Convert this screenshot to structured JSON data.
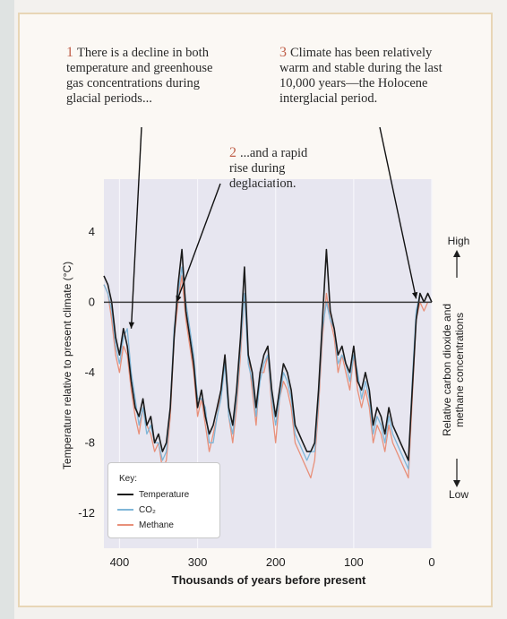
{
  "annotations": [
    {
      "num": "1",
      "text": "There is a decline in both\ntemperature and greenhouse\ngas concentrations during\nglacial periods..."
    },
    {
      "num": "2",
      "text": "...and a rapid\nrise during\ndeglaciation."
    },
    {
      "num": "3",
      "text": "Climate has been relatively\nwarm and stable during the last\n10,000 years—the Holocene\ninterglacial period."
    }
  ],
  "colors": {
    "temperature": "#1a1a1a",
    "co2": "#7fb6d8",
    "methane": "#e8907a",
    "plot_background": "#e7e6f0",
    "annotation_number": "#c0604a"
  },
  "key": {
    "title": "Key:",
    "items": [
      "Temperature",
      "CO₂",
      "Methane"
    ]
  },
  "chart_data": {
    "type": "line",
    "xlabel": "Thousands of years before present",
    "ylabel": "Temperature relative to present climate (°C)",
    "ylabel_right": "Relative carbon dioxide and\nmethane concentrations",
    "right_axis_high": "High",
    "right_axis_low": "Low",
    "xlim": [
      420,
      0
    ],
    "ylim": [
      -14,
      7
    ],
    "x_ticks": [
      400,
      300,
      200,
      100,
      0
    ],
    "y_ticks": [
      4,
      0,
      -4,
      -8,
      -12
    ],
    "reference_line": 0,
    "legend_position": "bottom-left",
    "series": [
      {
        "name": "Temperature",
        "x": [
          420,
          415,
          410,
          405,
          400,
          395,
          390,
          385,
          380,
          375,
          370,
          365,
          360,
          355,
          350,
          345,
          340,
          335,
          330,
          325,
          320,
          315,
          310,
          305,
          300,
          295,
          290,
          285,
          280,
          275,
          270,
          265,
          260,
          255,
          250,
          245,
          240,
          235,
          230,
          225,
          220,
          215,
          210,
          205,
          200,
          195,
          190,
          185,
          180,
          175,
          170,
          165,
          160,
          155,
          150,
          145,
          140,
          135,
          130,
          125,
          120,
          115,
          110,
          105,
          100,
          95,
          90,
          85,
          80,
          75,
          70,
          65,
          60,
          55,
          50,
          45,
          40,
          35,
          30,
          25,
          20,
          15,
          10,
          5,
          0
        ],
        "y": [
          1.5,
          1,
          0,
          -2,
          -3,
          -1.5,
          -2.5,
          -4.5,
          -6,
          -6.5,
          -5.5,
          -7,
          -6.5,
          -8,
          -7.5,
          -8.5,
          -8,
          -6,
          -2,
          1,
          3,
          -0.5,
          -2,
          -3.5,
          -6,
          -5,
          -6.5,
          -7.5,
          -7,
          -6,
          -5,
          -3,
          -6,
          -7,
          -5,
          -2,
          2,
          -3,
          -4,
          -6,
          -4,
          -3,
          -2.5,
          -5,
          -6.5,
          -5,
          -3.5,
          -4,
          -5,
          -7,
          -7.5,
          -8,
          -8.5,
          -8.5,
          -8,
          -5,
          -1,
          3,
          -0.5,
          -1.5,
          -3,
          -2.5,
          -3.5,
          -4,
          -2.5,
          -4.5,
          -5,
          -4,
          -5,
          -7,
          -6,
          -6.5,
          -7.5,
          -6,
          -7,
          -7.5,
          -8,
          -8.5,
          -9,
          -5,
          -1,
          0.5,
          0,
          0.5,
          0
        ]
      },
      {
        "name": "CO₂",
        "x": [
          420,
          415,
          410,
          405,
          400,
          395,
          390,
          385,
          380,
          375,
          370,
          365,
          360,
          355,
          350,
          345,
          340,
          335,
          330,
          325,
          320,
          315,
          310,
          305,
          300,
          295,
          290,
          285,
          280,
          275,
          270,
          265,
          260,
          255,
          250,
          245,
          240,
          235,
          230,
          225,
          220,
          215,
          210,
          205,
          200,
          195,
          190,
          185,
          180,
          175,
          170,
          165,
          160,
          155,
          150,
          145,
          140,
          135,
          130,
          125,
          120,
          115,
          110,
          105,
          100,
          95,
          90,
          85,
          80,
          75,
          70,
          65,
          60,
          55,
          50,
          45,
          40,
          35,
          30,
          25,
          20,
          15,
          10,
          5,
          0
        ],
        "y": [
          1,
          0.5,
          -0.5,
          -2.5,
          -3.5,
          -2,
          -1.5,
          -4,
          -5.5,
          -7,
          -6,
          -7.5,
          -7,
          -8,
          -8,
          -9,
          -8.5,
          -6,
          -1.5,
          0.5,
          2,
          0,
          -1.5,
          -3,
          -5.5,
          -5.5,
          -6,
          -8,
          -8,
          -6.5,
          -5.5,
          -3.5,
          -6.5,
          -7.5,
          -5.5,
          -2.5,
          0.5,
          -3.5,
          -4.5,
          -6.5,
          -4.5,
          -3.5,
          -3,
          -5.5,
          -7,
          -5.5,
          -4,
          -4.5,
          -5.5,
          -7.5,
          -8,
          -8.5,
          -9,
          -8.5,
          -8.5,
          -5.5,
          -1.5,
          0,
          -1,
          -1.5,
          -3.5,
          -3,
          -3.5,
          -4.5,
          -3,
          -4,
          -5.5,
          -4.5,
          -5.5,
          -7.5,
          -6.5,
          -7,
          -8,
          -6.5,
          -7.5,
          -8,
          -8.5,
          -9,
          -9.5,
          -4.5,
          -0.5,
          0.5,
          0,
          0,
          0
        ]
      },
      {
        "name": "Methane",
        "x": [
          420,
          415,
          410,
          405,
          400,
          395,
          390,
          385,
          380,
          375,
          370,
          365,
          360,
          355,
          350,
          345,
          340,
          335,
          330,
          325,
          320,
          315,
          310,
          305,
          300,
          295,
          290,
          285,
          280,
          275,
          270,
          265,
          260,
          255,
          250,
          245,
          240,
          235,
          230,
          225,
          220,
          215,
          210,
          205,
          200,
          195,
          190,
          185,
          180,
          175,
          170,
          165,
          160,
          155,
          150,
          145,
          140,
          135,
          130,
          125,
          120,
          115,
          110,
          105,
          100,
          95,
          90,
          85,
          80,
          75,
          70,
          65,
          60,
          55,
          50,
          45,
          40,
          35,
          30,
          25,
          20,
          15,
          10,
          5,
          0
        ],
        "y": [
          1,
          0.5,
          -1,
          -3,
          -4,
          -2.5,
          -3,
          -5,
          -6.5,
          -7.5,
          -6,
          -7,
          -7.5,
          -8.5,
          -8,
          -9.5,
          -9,
          -6.5,
          -2,
          0,
          1.5,
          -1,
          -2.5,
          -4,
          -6.5,
          -5.5,
          -7,
          -8.5,
          -7.5,
          -6.5,
          -5,
          -3,
          -6.5,
          -8,
          -6,
          -3,
          0.5,
          -3,
          -5,
          -7,
          -4,
          -4,
          -3,
          -6,
          -8,
          -5.5,
          -4.5,
          -5,
          -6,
          -8,
          -8.5,
          -9,
          -9.5,
          -10,
          -9,
          -6,
          -2,
          0.5,
          -1,
          -2,
          -4,
          -3,
          -4,
          -5,
          -3,
          -5,
          -6,
          -5,
          -6,
          -8,
          -7,
          -7.5,
          -8.5,
          -7,
          -8,
          -8.5,
          -9,
          -9.5,
          -10,
          -5.5,
          -1,
          0,
          -0.5,
          0,
          0
        ]
      }
    ]
  }
}
